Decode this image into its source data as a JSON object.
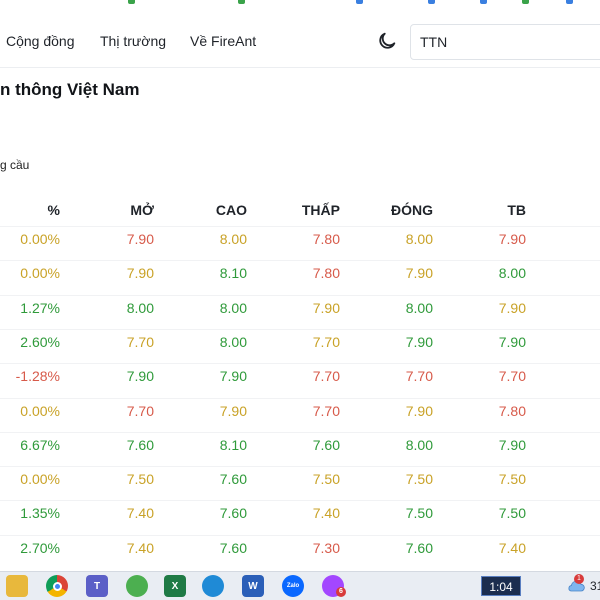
{
  "colors": {
    "up": "#2f9a3a",
    "down": "#d75a4a",
    "ref": "#c9a227",
    "header_text": "#1f2329"
  },
  "nav": {
    "links": [
      "Cộng đồng",
      "Thị trường",
      "Về FireAnt"
    ],
    "theme_icon": "moon-icon",
    "search_value": "TTN"
  },
  "page": {
    "title": "n thông Việt Nam",
    "subtitle": "g cầu"
  },
  "table": {
    "columns": [
      "%",
      "MỞ",
      "CAO",
      "THẤP",
      "ĐÓNG",
      "TB"
    ],
    "rows": [
      [
        {
          "v": "0.00%",
          "c": "ref"
        },
        {
          "v": "7.90",
          "c": "down"
        },
        {
          "v": "8.00",
          "c": "ref"
        },
        {
          "v": "7.80",
          "c": "down"
        },
        {
          "v": "8.00",
          "c": "ref"
        },
        {
          "v": "7.90",
          "c": "down"
        }
      ],
      [
        {
          "v": "0.00%",
          "c": "ref"
        },
        {
          "v": "7.90",
          "c": "ref"
        },
        {
          "v": "8.10",
          "c": "up"
        },
        {
          "v": "7.80",
          "c": "down"
        },
        {
          "v": "7.90",
          "c": "ref"
        },
        {
          "v": "8.00",
          "c": "up"
        }
      ],
      [
        {
          "v": "1.27%",
          "c": "up"
        },
        {
          "v": "8.00",
          "c": "up"
        },
        {
          "v": "8.00",
          "c": "up"
        },
        {
          "v": "7.90",
          "c": "ref"
        },
        {
          "v": "8.00",
          "c": "up"
        },
        {
          "v": "7.90",
          "c": "ref"
        }
      ],
      [
        {
          "v": "2.60%",
          "c": "up"
        },
        {
          "v": "7.70",
          "c": "ref"
        },
        {
          "v": "8.00",
          "c": "up"
        },
        {
          "v": "7.70",
          "c": "ref"
        },
        {
          "v": "7.90",
          "c": "up"
        },
        {
          "v": "7.90",
          "c": "up"
        }
      ],
      [
        {
          "v": "-1.28%",
          "c": "down"
        },
        {
          "v": "7.90",
          "c": "up"
        },
        {
          "v": "7.90",
          "c": "up"
        },
        {
          "v": "7.70",
          "c": "down"
        },
        {
          "v": "7.70",
          "c": "down"
        },
        {
          "v": "7.70",
          "c": "down"
        }
      ],
      [
        {
          "v": "0.00%",
          "c": "ref"
        },
        {
          "v": "7.70",
          "c": "down"
        },
        {
          "v": "7.90",
          "c": "ref"
        },
        {
          "v": "7.70",
          "c": "down"
        },
        {
          "v": "7.90",
          "c": "ref"
        },
        {
          "v": "7.80",
          "c": "down"
        }
      ],
      [
        {
          "v": "6.67%",
          "c": "up"
        },
        {
          "v": "7.60",
          "c": "up"
        },
        {
          "v": "8.10",
          "c": "up"
        },
        {
          "v": "7.60",
          "c": "up"
        },
        {
          "v": "8.00",
          "c": "up"
        },
        {
          "v": "7.90",
          "c": "up"
        }
      ],
      [
        {
          "v": "0.00%",
          "c": "ref"
        },
        {
          "v": "7.50",
          "c": "ref"
        },
        {
          "v": "7.60",
          "c": "up"
        },
        {
          "v": "7.50",
          "c": "ref"
        },
        {
          "v": "7.50",
          "c": "ref"
        },
        {
          "v": "7.50",
          "c": "ref"
        }
      ],
      [
        {
          "v": "1.35%",
          "c": "up"
        },
        {
          "v": "7.40",
          "c": "ref"
        },
        {
          "v": "7.60",
          "c": "up"
        },
        {
          "v": "7.40",
          "c": "ref"
        },
        {
          "v": "7.50",
          "c": "up"
        },
        {
          "v": "7.50",
          "c": "up"
        }
      ],
      [
        {
          "v": "2.70%",
          "c": "up"
        },
        {
          "v": "7.40",
          "c": "ref"
        },
        {
          "v": "7.60",
          "c": "up"
        },
        {
          "v": "7.30",
          "c": "down"
        },
        {
          "v": "7.60",
          "c": "up"
        },
        {
          "v": "7.40",
          "c": "ref"
        }
      ]
    ]
  },
  "taskbar": {
    "apps": [
      {
        "name": "file-explorer-icon",
        "glyph": "",
        "color": "#e8b83c"
      },
      {
        "name": "chrome-icon",
        "glyph": "",
        "color": "#ffffff"
      },
      {
        "name": "teams-icon",
        "glyph": "T",
        "color": "#5b5fc7"
      },
      {
        "name": "coc-coc-icon",
        "glyph": "",
        "color": "#4caf50"
      },
      {
        "name": "excel-icon",
        "glyph": "X",
        "color": "#1f7a45"
      },
      {
        "name": "edge-icon",
        "glyph": "",
        "color": "#1f8ad6"
      },
      {
        "name": "word-icon",
        "glyph": "W",
        "color": "#2b5fb8"
      },
      {
        "name": "zalo-icon",
        "glyph": "Zalo",
        "color": "#0a68ff"
      },
      {
        "name": "messenger-icon",
        "glyph": "",
        "color": "#a347ff"
      }
    ],
    "messenger_badge": "6",
    "clock": "1:04",
    "weather_icon": "cloud-icon",
    "weather_badge": "1",
    "tray_text": "31"
  }
}
